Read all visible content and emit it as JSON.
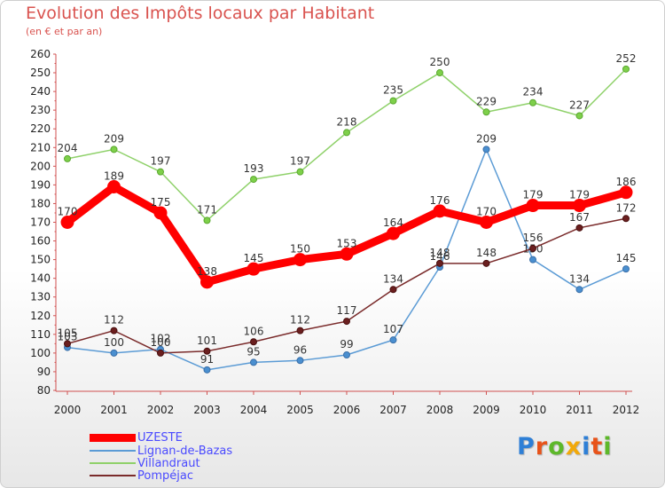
{
  "chart_data": {
    "type": "line",
    "title": "Evolution des Impôts locaux par Habitant",
    "subtitle": "(en € et par an)",
    "x": [
      "2000",
      "2001",
      "2002",
      "2003",
      "2004",
      "2005",
      "2006",
      "2007",
      "2008",
      "2009",
      "2010",
      "2011",
      "2012"
    ],
    "ylim": [
      80,
      260
    ],
    "yticks": [
      80,
      90,
      100,
      110,
      120,
      130,
      140,
      150,
      160,
      170,
      180,
      190,
      200,
      210,
      220,
      230,
      240,
      250,
      260
    ],
    "series": [
      {
        "name": "UZESTE",
        "color": "#ff0000",
        "values": [
          170,
          189,
          175,
          138,
          145,
          150,
          153,
          164,
          176,
          170,
          179,
          179,
          186
        ]
      },
      {
        "name": "Lignan-de-Bazas",
        "color": "#5b9bd5",
        "values": [
          103,
          100,
          102,
          91,
          95,
          96,
          99,
          107,
          146,
          209,
          150,
          134,
          145
        ]
      },
      {
        "name": "Villandraut",
        "color": "#8fd16a",
        "values": [
          204,
          209,
          197,
          171,
          193,
          197,
          218,
          235,
          250,
          229,
          234,
          227,
          252
        ]
      },
      {
        "name": "Pompéjac",
        "color": "#7a2b2b",
        "values": [
          105,
          112,
          100,
          101,
          106,
          112,
          117,
          134,
          148,
          148,
          156,
          167,
          172
        ]
      }
    ],
    "grid": false,
    "legend": "bottom-left"
  },
  "logo": {
    "text": "Proxiti"
  }
}
